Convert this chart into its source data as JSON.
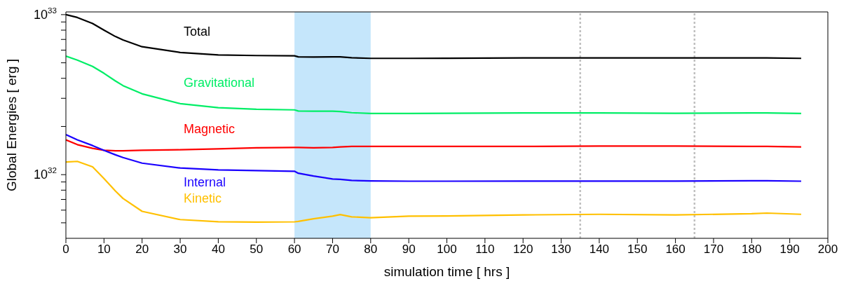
{
  "chart_data": {
    "type": "line",
    "xlabel": "simulation time  [ hrs ]",
    "ylabel": "Global Energies  [ erg ]",
    "log": "y",
    "grid": false,
    "legend": false,
    "marker": "none",
    "line_style": "solid",
    "x": [
      0,
      3,
      7,
      10,
      13,
      15,
      20,
      30,
      40,
      50,
      60,
      61,
      65,
      70,
      72,
      75,
      80,
      90,
      100,
      120,
      140,
      160,
      180,
      184,
      193
    ],
    "series": [
      {
        "name": "Total",
        "color": "#000000",
        "values": [
          1e+33,
          9.6e+32,
          8.8e+32,
          8e+32,
          7.3e+32,
          6.95e+32,
          6.3e+32,
          5.8e+32,
          5.6e+32,
          5.55e+32,
          5.53e+32,
          5.45e+32,
          5.43e+32,
          5.45e+32,
          5.45e+32,
          5.38e+32,
          5.33e+32,
          5.33e+32,
          5.34e+32,
          5.36e+32,
          5.37e+32,
          5.36e+32,
          5.37e+32,
          5.37e+32,
          5.33e+32
        ]
      },
      {
        "name": "Gravitational",
        "color": "#00ee66",
        "values": [
          5.5e+32,
          5.2e+32,
          4.75e+32,
          4.3e+32,
          3.85e+32,
          3.6e+32,
          3.2e+32,
          2.78e+32,
          2.62e+32,
          2.56e+32,
          2.54e+32,
          2.5e+32,
          2.49e+32,
          2.49e+32,
          2.48e+32,
          2.44e+32,
          2.41e+32,
          2.41e+32,
          2.42e+32,
          2.43e+32,
          2.43e+32,
          2.42e+32,
          2.43e+32,
          2.43e+32,
          2.41e+32
        ]
      },
      {
        "name": "Magnetic",
        "color": "#ff0000",
        "values": [
          1.65e+32,
          1.54e+32,
          1.46e+32,
          1.42e+32,
          1.41e+32,
          1.41e+32,
          1.42e+32,
          1.43e+32,
          1.45e+32,
          1.47e+32,
          1.48e+32,
          1.48e+32,
          1.47e+32,
          1.48e+32,
          1.49e+32,
          1.5e+32,
          1.5e+32,
          1.5e+32,
          1.5e+32,
          1.5e+32,
          1.51e+32,
          1.51e+32,
          1.5e+32,
          1.5e+32,
          1.49e+32
        ]
      },
      {
        "name": "Internal",
        "color": "#1a00ff",
        "values": [
          1.78e+32,
          1.65e+32,
          1.52e+32,
          1.42e+32,
          1.33e+32,
          1.28e+32,
          1.18e+32,
          1.1e+32,
          1.07e+32,
          1.06e+32,
          1.05e+32,
          1.02e+32,
          9.8e+31,
          9.4e+31,
          9.35e+31,
          9.2e+31,
          9.13e+31,
          9.1e+31,
          9.1e+31,
          9.12e+31,
          9.12e+31,
          9.12e+31,
          9.15e+31,
          9.15e+31,
          9.1e+31
        ]
      },
      {
        "name": "Kinetic",
        "color": "#ffc000",
        "values": [
          1.2e+32,
          1.21e+32,
          1.12e+32,
          9.45e+31,
          7.9e+31,
          7.1e+31,
          5.9e+31,
          5.24e+31,
          5.08e+31,
          5.05e+31,
          5.07e+31,
          5.1e+31,
          5.3e+31,
          5.5e+31,
          5.63e+31,
          5.45e+31,
          5.38e+31,
          5.5e+31,
          5.52e+31,
          5.6e+31,
          5.65e+31,
          5.6e+31,
          5.7e+31,
          5.75e+31,
          5.65e+31
        ]
      }
    ],
    "xlim": [
      0,
      200
    ],
    "xticks": [
      0,
      10,
      20,
      30,
      40,
      50,
      60,
      70,
      80,
      90,
      100,
      110,
      120,
      130,
      140,
      150,
      160,
      170,
      180,
      190,
      200
    ],
    "ylim": [
      4e+31,
      1.04e+33
    ],
    "yticks": [
      {
        "value": 5e+31,
        "label": null
      },
      {
        "value": 6e+31,
        "label": null
      },
      {
        "value": 7e+31,
        "label": null
      },
      {
        "value": 8e+31,
        "label": null
      },
      {
        "value": 9e+31,
        "label": null
      },
      {
        "value": 1e+32,
        "label": "10$^{32}$"
      },
      {
        "value": 2e+32,
        "label": null
      },
      {
        "value": 3e+32,
        "label": null
      },
      {
        "value": 4e+32,
        "label": null
      },
      {
        "value": 5e+32,
        "label": null
      },
      {
        "value": 6e+32,
        "label": null
      },
      {
        "value": 7e+32,
        "label": null
      },
      {
        "value": 8e+32,
        "label": null
      },
      {
        "value": 9e+32,
        "label": null
      },
      {
        "value": 1e+33,
        "label": "10$^{33}$"
      }
    ],
    "bands": [
      {
        "axis": "x",
        "from": 60,
        "to": 80,
        "color": "#c5e6fb"
      }
    ],
    "ref_lines": [
      {
        "axis": "x",
        "value": 135,
        "color": "#c0c0c0",
        "line_style": "dotted"
      },
      {
        "axis": "x",
        "value": 165,
        "color": "#c0c0c0",
        "line_style": "dotted"
      }
    ]
  }
}
